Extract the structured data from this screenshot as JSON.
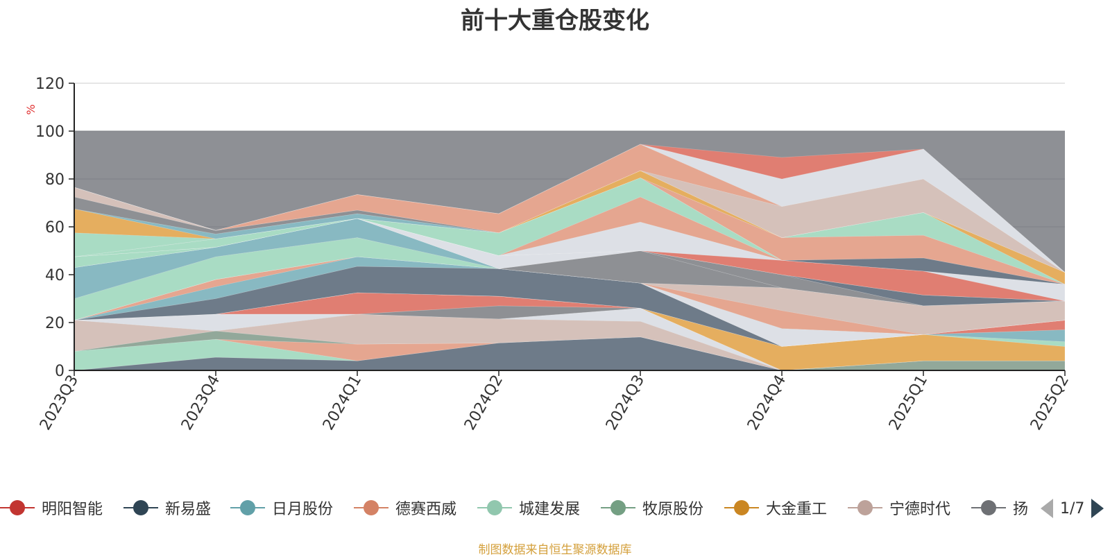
{
  "chart_data": {
    "type": "area",
    "title": "前十大重仓股变化",
    "ylabel": "%",
    "ylim": [
      0,
      120
    ],
    "yticks": [
      0,
      20,
      40,
      60,
      80,
      100,
      120
    ],
    "grid": true,
    "stacked": true,
    "background_band": {
      "from": 0,
      "to": 100,
      "color": "#8e9095"
    },
    "categories": [
      "2023Q3",
      "2023Q4",
      "2024Q1",
      "2024Q2",
      "2024Q3",
      "2024Q4",
      "2025Q1",
      "2025Q2"
    ],
    "series": [
      {
        "name": "",
        "color": "#6e7b89",
        "values": [
          0,
          5.5,
          4,
          11.5,
          14,
          0,
          0,
          0
        ]
      },
      {
        "name": "",
        "color": "#a9dcc4",
        "values": [
          8,
          7.5,
          0,
          0,
          0,
          0,
          0,
          0
        ]
      },
      {
        "name": "",
        "color": "#e5a690",
        "values": [
          0,
          0,
          7,
          0,
          0,
          0,
          0,
          0
        ]
      },
      {
        "name": "",
        "color": "#92a89a",
        "values": [
          0,
          3.5,
          0,
          0,
          0,
          0,
          4,
          4
        ]
      },
      {
        "name": "",
        "color": "#d5c1ba",
        "values": [
          13,
          0,
          12.5,
          10,
          6.5,
          0,
          0,
          0
        ]
      },
      {
        "name": "",
        "color": "#dde0e6",
        "values": [
          0,
          7,
          0,
          0,
          5.5,
          0,
          0,
          0
        ]
      },
      {
        "name": "",
        "color": "#8e9094",
        "values": [
          0,
          0,
          0,
          5.5,
          0,
          0,
          0,
          0
        ]
      },
      {
        "name": "",
        "color": "#e07e72",
        "values": [
          0,
          0,
          9,
          4,
          0,
          0,
          0,
          0
        ]
      },
      {
        "name": "",
        "color": "#e5ae5f",
        "values": [
          0,
          0,
          0,
          0,
          0,
          10,
          11,
          6
        ]
      },
      {
        "name": "",
        "color": "#a9dcc4",
        "values": [
          0,
          0,
          0,
          0,
          0,
          0,
          0,
          2
        ]
      },
      {
        "name": "",
        "color": "#88b9c2",
        "values": [
          0,
          0,
          0,
          0,
          0,
          0,
          0,
          5
        ]
      },
      {
        "name": "",
        "color": "#e07e72",
        "values": [
          0,
          0,
          0,
          0,
          0,
          0,
          0,
          4
        ]
      },
      {
        "name": "",
        "color": "#6e7b89",
        "values": [
          0,
          6.5,
          11,
          11.5,
          10.5,
          0,
          0,
          0
        ]
      },
      {
        "name": "",
        "color": "#88b9c2",
        "values": [
          0,
          5,
          4,
          0,
          0,
          0,
          0,
          0
        ]
      },
      {
        "name": "",
        "color": "#e5a690",
        "values": [
          0,
          3,
          0,
          0,
          0,
          0,
          0,
          0
        ]
      },
      {
        "name": "",
        "color": "#dde0e6",
        "values": [
          0,
          0,
          0,
          0,
          0,
          7.5,
          0,
          0
        ]
      },
      {
        "name": "",
        "color": "#e5a690",
        "values": [
          0,
          0,
          0,
          0,
          0,
          7.5,
          0,
          0
        ]
      },
      {
        "name": "",
        "color": "#d5c1ba",
        "values": [
          0,
          0,
          0,
          0,
          0,
          9.5,
          12,
          8
        ]
      },
      {
        "name": "",
        "color": "#a9dcc4",
        "values": [
          9,
          9.5,
          8,
          0,
          0,
          0,
          0,
          0
        ]
      },
      {
        "name": "",
        "color": "#88b9c2",
        "values": [
          13,
          4,
          8,
          0,
          0,
          0,
          0,
          0
        ]
      },
      {
        "name": "",
        "color": "#8e9094",
        "values": [
          0,
          0,
          0,
          0,
          13.5,
          0,
          0,
          0
        ]
      },
      {
        "name": "",
        "color": "#8e9094",
        "values": [
          0,
          0,
          0,
          0,
          0,
          5.5,
          0,
          0
        ]
      },
      {
        "name": "",
        "color": "#6e7b89",
        "values": [
          0,
          0,
          0,
          0,
          0,
          0,
          4.5,
          0
        ]
      },
      {
        "name": "",
        "color": "#dde0e6",
        "values": [
          0,
          0,
          0,
          5.5,
          0,
          0,
          0,
          0
        ]
      },
      {
        "name": "",
        "color": "#a9dcc4",
        "values": [
          4.5,
          0,
          0,
          0,
          0,
          0,
          0,
          0
        ]
      },
      {
        "name": "",
        "color": "#e07e72",
        "values": [
          0,
          0,
          0,
          0,
          0,
          6,
          10,
          0
        ]
      },
      {
        "name": "",
        "color": "#dde0e6",
        "values": [
          0,
          0,
          0,
          0,
          12,
          0,
          0,
          7
        ]
      },
      {
        "name": "",
        "color": "#e5a690",
        "values": [
          0,
          0,
          0,
          0,
          10.5,
          0,
          0,
          0
        ]
      },
      {
        "name": "",
        "color": "#a9dcc4",
        "values": [
          0,
          3.5,
          0,
          9.5,
          8,
          0,
          0,
          0
        ]
      },
      {
        "name": "",
        "color": "#6e7b89",
        "values": [
          0,
          0,
          0,
          0,
          0,
          0,
          5.5,
          0
        ]
      },
      {
        "name": "",
        "color": "#e5a690",
        "values": [
          0,
          0,
          0,
          0,
          0,
          9.5,
          9.5,
          0
        ]
      },
      {
        "name": "",
        "color": "#a9dcc4",
        "values": [
          10,
          0,
          0,
          0,
          0,
          0,
          9.5,
          0
        ]
      },
      {
        "name": "",
        "color": "#e5ae5f",
        "values": [
          10,
          0,
          0,
          0,
          3,
          0,
          0,
          5
        ]
      },
      {
        "name": "",
        "color": "#88b9c2",
        "values": [
          0,
          2,
          2,
          0,
          0,
          0,
          0,
          0
        ]
      },
      {
        "name": "",
        "color": "#8e9094",
        "values": [
          5,
          1.5,
          1.5,
          0,
          0,
          0,
          0,
          0
        ]
      },
      {
        "name": "",
        "color": "#d5c1ba",
        "values": [
          4,
          0,
          0,
          0,
          0,
          13,
          14,
          0
        ]
      },
      {
        "name": "",
        "color": "#e5a690",
        "values": [
          0,
          0,
          6.5,
          8,
          11,
          0,
          0,
          0
        ]
      },
      {
        "name": "",
        "color": "#dde0e6",
        "values": [
          0,
          0,
          0,
          0,
          0,
          11.5,
          12.5,
          0
        ]
      },
      {
        "name": "",
        "color": "#e07e72",
        "values": [
          0,
          0,
          0,
          0,
          0,
          9,
          0,
          0
        ]
      }
    ],
    "legend": {
      "items": [
        {
          "label": "明阳智能",
          "color": "#c23531"
        },
        {
          "label": "新易盛",
          "color": "#2f4554"
        },
        {
          "label": "日月股份",
          "color": "#61a0a8"
        },
        {
          "label": "德赛西威",
          "color": "#d48265"
        },
        {
          "label": "城建发展",
          "color": "#91c7ae"
        },
        {
          "label": "牧原股份",
          "color": "#749f83"
        },
        {
          "label": "大金重工",
          "color": "#ca8622"
        },
        {
          "label": "宁德时代",
          "color": "#bda29a"
        },
        {
          "label": "扬杰科技",
          "color": "#6e7074"
        }
      ],
      "page": "1/7",
      "placement": "bottom"
    }
  },
  "footnote": "制图数据来自恒生聚源数据库"
}
